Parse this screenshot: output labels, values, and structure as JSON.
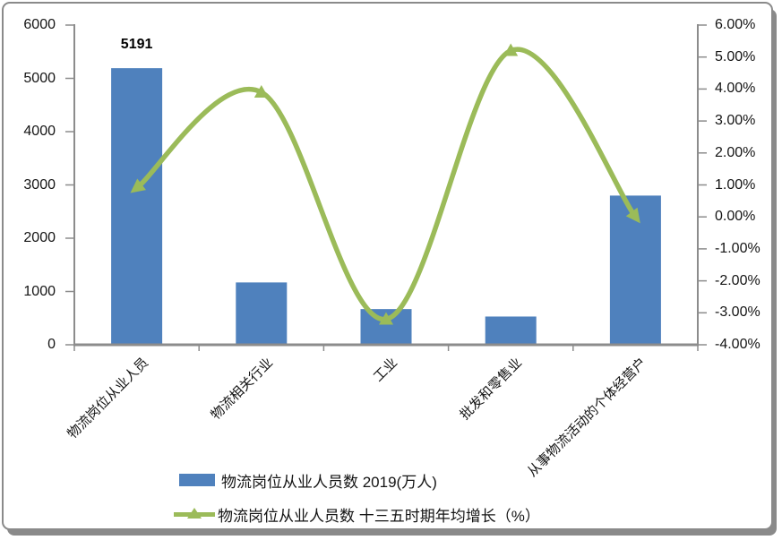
{
  "chart_data": {
    "type": "combo",
    "categories": [
      "物流岗位从业人员",
      "物流相关行业",
      "工业",
      "批发和零售业",
      "从事物流活动的个体经营户"
    ],
    "series": [
      {
        "name": "物流岗位从业人员数 2019(万人)",
        "type": "bar",
        "axis": "left",
        "color": "#4F81BD",
        "values": [
          5191,
          1170,
          670,
          530,
          2800
        ]
      },
      {
        "name": "物流岗位从业人员数 十三五时期年均增长（%）",
        "type": "line",
        "axis": "right",
        "color": "#9BBB59",
        "marker": "triangle",
        "smooth": true,
        "values": [
          0.9,
          3.9,
          -3.2,
          5.2,
          0.0
        ]
      }
    ],
    "left_axis": {
      "min": 0,
      "max": 6000,
      "step": 1000,
      "tick_labels": [
        "6000",
        "5000",
        "4000",
        "3000",
        "2000",
        "1000",
        "0"
      ]
    },
    "right_axis": {
      "min": -4,
      "max": 6,
      "step": 1,
      "tick_labels": [
        "6.00%",
        "5.00%",
        "4.00%",
        "3.00%",
        "2.00%",
        "1.00%",
        "0.00%",
        "-1.00%",
        "-2.00%",
        "-3.00%",
        "-4.00%"
      ]
    },
    "data_labels": [
      {
        "series": 0,
        "index": 0,
        "text": "5191"
      }
    ],
    "legend": {
      "position": "bottom",
      "items": [
        {
          "label": "物流岗位从业人员数 2019(万人)",
          "swatch": "bar"
        },
        {
          "label": "物流岗位从业人员数 十三五时期年均增长（%）",
          "swatch": "line-triangle"
        }
      ]
    },
    "grid": false,
    "title": "",
    "colors": {
      "bar": "#4F81BD",
      "line": "#9BBB59",
      "axis": "#8C8C8C",
      "text": "#141414",
      "frame_border": "#8A8A8A"
    }
  }
}
